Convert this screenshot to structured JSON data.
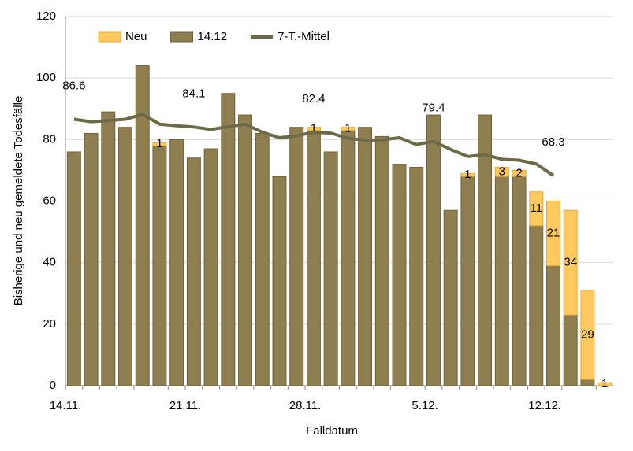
{
  "chart_data": {
    "type": "bar",
    "stacked": true,
    "ylabel": "Bisherige und neu gemeldete Todesfälle",
    "xlabel": "Falldatum",
    "categories": [
      "14.11.",
      null,
      null,
      null,
      null,
      null,
      null,
      "21.11.",
      null,
      null,
      null,
      null,
      null,
      null,
      "28.11.",
      null,
      null,
      null,
      null,
      null,
      null,
      "5.12.",
      null,
      null,
      null,
      null,
      null,
      null,
      "12.12.",
      null,
      null,
      null
    ],
    "ylim": [
      0,
      120
    ],
    "yticks": [
      0,
      20,
      40,
      60,
      80,
      100,
      120
    ],
    "grid": true,
    "series": [
      {
        "name": "Neu",
        "type": "bar",
        "color": "#ffc95e",
        "edge": "#e8a93a",
        "values": [
          0,
          0,
          0,
          0,
          0,
          1,
          0,
          0,
          0,
          0,
          0,
          0,
          0,
          0,
          1,
          0,
          1,
          0,
          0,
          0,
          0,
          0,
          0,
          1,
          0,
          3,
          2,
          11,
          21,
          34,
          29,
          1
        ]
      },
      {
        "name": "14.12",
        "type": "bar",
        "color": "#8f7f50",
        "edge": "#6e6238",
        "values": [
          76,
          82,
          89,
          84,
          104,
          78,
          80,
          74,
          77,
          95,
          88,
          82,
          68,
          84,
          83,
          76,
          83,
          84,
          81,
          72,
          71,
          88,
          57,
          68,
          88,
          68,
          68,
          52,
          39,
          23,
          2,
          0
        ]
      },
      {
        "name": "7-T.-Mittel",
        "type": "line",
        "color": "#6d6a48",
        "values": [
          86.6,
          85.8,
          86.2,
          86.6,
          88.2,
          85.0,
          84.5,
          84.1,
          83.3,
          84.2,
          85.0,
          82.4,
          80.6,
          81.2,
          82.4,
          82.1,
          80.4,
          79.8,
          79.9,
          80.6,
          78.4,
          79.4,
          76.8,
          74.5,
          75.1,
          73.6,
          73.3,
          72.1,
          68.3,
          null,
          null,
          null
        ],
        "value_labels": [
          "86.6",
          null,
          null,
          null,
          null,
          null,
          null,
          "84.1",
          null,
          null,
          null,
          null,
          null,
          null,
          "82.4",
          null,
          null,
          null,
          null,
          null,
          null,
          "79.4",
          null,
          null,
          null,
          null,
          null,
          null,
          "68.3",
          null,
          null,
          null
        ]
      }
    ]
  }
}
